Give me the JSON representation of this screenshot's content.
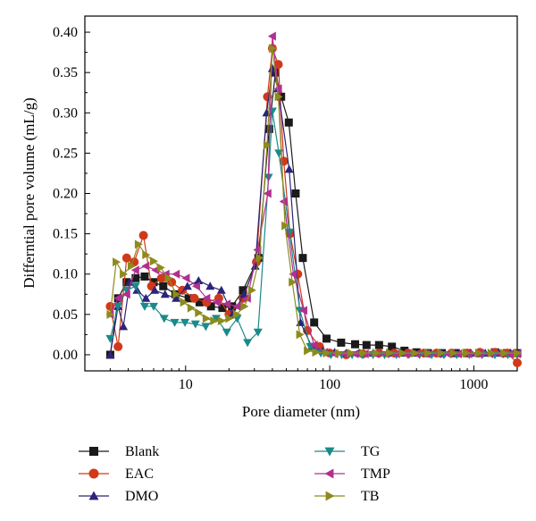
{
  "chart_data": {
    "type": "line",
    "xlabel": "Pore diameter (nm)",
    "ylabel": "Differntial pore volume (mL/g)",
    "x_scale": "log",
    "xlim": [
      2,
      2000
    ],
    "ylim": [
      -0.02,
      0.42
    ],
    "x_ticks": [
      10,
      100,
      1000
    ],
    "x_tick_labels": [
      "10",
      "100",
      "1000"
    ],
    "y_ticks": [
      0.0,
      0.05,
      0.1,
      0.15,
      0.2,
      0.25,
      0.3,
      0.35,
      0.4
    ],
    "y_tick_labels": [
      "0.00",
      "0.05",
      "0.10",
      "0.15",
      "0.20",
      "0.25",
      "0.30",
      "0.35",
      "0.40"
    ],
    "series": [
      {
        "name": "Blank",
        "color": "#1a1a1a",
        "marker": "square",
        "x": [
          3.0,
          3.4,
          3.9,
          4.5,
          5.2,
          6.0,
          7.0,
          8.5,
          10.5,
          12.5,
          15,
          18,
          21,
          25,
          32,
          38,
          42,
          46,
          52,
          58,
          65,
          78,
          95,
          120,
          150,
          180,
          220,
          270,
          330,
          400,
          480,
          600,
          750,
          900,
          1100,
          1400,
          1700,
          2000
        ],
        "y": [
          0.0,
          0.07,
          0.09,
          0.095,
          0.097,
          0.09,
          0.085,
          0.075,
          0.07,
          0.065,
          0.06,
          0.058,
          0.06,
          0.08,
          0.12,
          0.28,
          0.35,
          0.32,
          0.288,
          0.2,
          0.12,
          0.04,
          0.02,
          0.015,
          0.013,
          0.012,
          0.012,
          0.01,
          0.005,
          0.003,
          0.002,
          0.002,
          0.002,
          0.002,
          0.002,
          0.003,
          0.002,
          0.002
        ]
      },
      {
        "name": "EAC",
        "color": "#d0391a",
        "marker": "circle",
        "x": [
          3.0,
          3.4,
          3.9,
          4.4,
          5.1,
          5.8,
          6.8,
          8.0,
          9.5,
          11.5,
          14,
          17,
          20,
          25,
          31,
          37,
          40,
          44,
          48,
          53,
          60,
          70,
          85,
          100,
          130,
          170,
          220,
          280,
          350,
          450,
          550,
          700,
          900,
          1100,
          1400,
          1700,
          2000
        ],
        "y": [
          0.06,
          0.01,
          0.12,
          0.115,
          0.148,
          0.085,
          0.095,
          0.09,
          0.08,
          0.07,
          0.065,
          0.07,
          0.05,
          0.07,
          0.115,
          0.32,
          0.38,
          0.36,
          0.24,
          0.15,
          0.1,
          0.03,
          0.01,
          0.002,
          0.0,
          0.001,
          0.002,
          0.002,
          0.002,
          0.002,
          0.002,
          0.002,
          0.002,
          0.003,
          0.003,
          0.002,
          -0.01
        ]
      },
      {
        "name": "DMO",
        "color": "#2b2478",
        "marker": "triangle-up",
        "x": [
          3.0,
          3.4,
          3.7,
          4.1,
          4.6,
          5.3,
          6.1,
          7.2,
          8.6,
          10.3,
          12.3,
          14.8,
          17.7,
          21.2,
          25.4,
          30.4,
          36.5,
          40,
          43.7,
          52.3,
          62.7,
          75.1,
          90,
          108,
          130,
          160,
          200,
          250,
          310,
          390,
          480,
          600,
          750,
          950,
          1200,
          1500,
          1800,
          2000
        ],
        "y": [
          0.0,
          0.06,
          0.035,
          0.09,
          0.08,
          0.07,
          0.08,
          0.075,
          0.07,
          0.085,
          0.092,
          0.085,
          0.08,
          0.05,
          0.075,
          0.11,
          0.3,
          0.355,
          0.33,
          0.23,
          0.04,
          0.01,
          0.005,
          0.003,
          0.002,
          0.002,
          0.002,
          0.002,
          0.002,
          0.002,
          0.002,
          0.002,
          0.002,
          0.002,
          0.002,
          0.002,
          0.002,
          0.002
        ]
      },
      {
        "name": "TG",
        "color": "#1a8a8a",
        "marker": "triangle-down",
        "x": [
          3.0,
          3.4,
          3.9,
          4.5,
          5.2,
          6.0,
          7.1,
          8.4,
          9.9,
          11.7,
          13.8,
          16.3,
          19.3,
          22.8,
          26.9,
          31.8,
          37.6,
          40,
          44.4,
          52.5,
          62.1,
          73.4,
          86.7,
          102,
          121,
          143,
          169,
          200,
          240,
          290,
          350,
          420,
          510,
          620,
          760,
          930,
          1140,
          1400,
          1720,
          2000
        ],
        "y": [
          0.02,
          0.06,
          0.08,
          0.085,
          0.06,
          0.06,
          0.045,
          0.04,
          0.04,
          0.038,
          0.035,
          0.045,
          0.028,
          0.045,
          0.015,
          0.028,
          0.22,
          0.302,
          0.25,
          0.152,
          0.055,
          0.01,
          0.002,
          0.0,
          0.0,
          0.0,
          0.0,
          0.0,
          0.0,
          0.0,
          0.0,
          0.0,
          0.0,
          0.0,
          0.0,
          0.0,
          0.0,
          0.0,
          0.0,
          0.0
        ]
      },
      {
        "name": "TMP",
        "color": "#b0308f",
        "marker": "triangle-left",
        "x": [
          3.0,
          3.4,
          3.9,
          4.5,
          5.3,
          6.2,
          7.3,
          8.6,
          10.1,
          11.9,
          14.0,
          16.5,
          19.4,
          22.8,
          26.8,
          31.6,
          37.2,
          40,
          44,
          48,
          56,
          66,
          78,
          92,
          108,
          127,
          150,
          176,
          208,
          245,
          290,
          340,
          400,
          470,
          560,
          660,
          780,
          920,
          1090,
          1290,
          1520,
          1790,
          2000
        ],
        "y": [
          0.05,
          0.07,
          0.075,
          0.105,
          0.11,
          0.105,
          0.1,
          0.1,
          0.095,
          0.085,
          0.07,
          0.065,
          0.063,
          0.06,
          0.07,
          0.13,
          0.2,
          0.395,
          0.33,
          0.19,
          0.1,
          0.055,
          0.012,
          0.003,
          0.001,
          0.001,
          0.001,
          0.001,
          0.001,
          0.001,
          0.001,
          0.001,
          0.001,
          0.001,
          0.001,
          0.001,
          0.001,
          0.001,
          0.001,
          0.001,
          0.001,
          0.001,
          0.001
        ]
      },
      {
        "name": "TB",
        "color": "#8c8c1c",
        "marker": "triangle-right",
        "x": [
          3.0,
          3.3,
          3.7,
          4.2,
          4.7,
          5.3,
          6.0,
          6.7,
          7.6,
          8.6,
          9.7,
          10.9,
          12.3,
          13.9,
          15.7,
          17.7,
          20.0,
          22.6,
          25.5,
          28.8,
          32.5,
          36.7,
          40,
          44,
          49,
          55,
          62,
          70,
          80,
          95,
          115,
          140,
          170,
          210,
          260,
          320,
          390,
          480,
          590,
          720,
          880,
          1080,
          1320,
          1620,
          2000
        ],
        "y": [
          0.05,
          0.115,
          0.1,
          0.11,
          0.137,
          0.124,
          0.116,
          0.108,
          0.095,
          0.075,
          0.065,
          0.058,
          0.052,
          0.045,
          0.042,
          0.042,
          0.045,
          0.05,
          0.06,
          0.08,
          0.12,
          0.26,
          0.38,
          0.32,
          0.16,
          0.09,
          0.025,
          0.005,
          0.003,
          0.002,
          0.002,
          0.002,
          0.002,
          0.002,
          0.002,
          0.002,
          0.002,
          0.002,
          0.002,
          0.002,
          0.002,
          0.002,
          0.002,
          0.002,
          0.002
        ]
      }
    ],
    "legend": {
      "placement": "bottom",
      "columns": 2,
      "entries": [
        "Blank",
        "EAC",
        "DMO",
        "TG",
        "TMP",
        "TB"
      ]
    }
  }
}
